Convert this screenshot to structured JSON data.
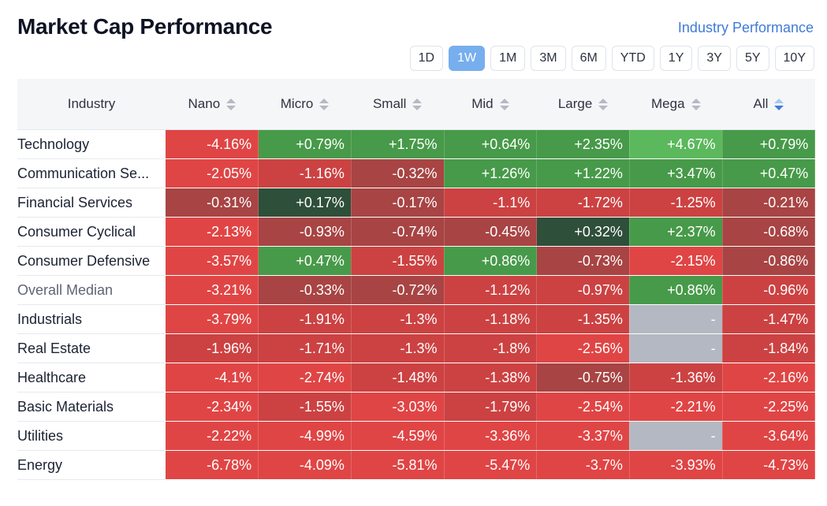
{
  "title": "Market Cap Performance",
  "industry_link": "Industry Performance",
  "ranges": [
    {
      "label": "1D",
      "active": false
    },
    {
      "label": "1W",
      "active": true
    },
    {
      "label": "1M",
      "active": false
    },
    {
      "label": "3M",
      "active": false
    },
    {
      "label": "6M",
      "active": false
    },
    {
      "label": "YTD",
      "active": false
    },
    {
      "label": "1Y",
      "active": false
    },
    {
      "label": "3Y",
      "active": false
    },
    {
      "label": "5Y",
      "active": false
    },
    {
      "label": "10Y",
      "active": false
    }
  ],
  "columns": [
    "Industry",
    "Nano",
    "Micro",
    "Small",
    "Mid",
    "Large",
    "Mega",
    "All"
  ],
  "sorted_column": "All",
  "colors": {
    "red_strong": "#e04545",
    "red_mid": "#cc4242",
    "red_dark": "#a84444",
    "green_bright": "#5cb85c",
    "green_mid": "#479a49",
    "green_dark": "#2f6e3e",
    "green_darkest": "#2e4f3a",
    "empty": "#b4b8c2"
  },
  "rows": [
    {
      "name": "Technology",
      "values": [
        "-4.16%",
        "+0.79%",
        "+1.75%",
        "+0.64%",
        "+2.35%",
        "+4.67%",
        "+0.79%"
      ],
      "shade": [
        "red_strong",
        "green_mid",
        "green_mid",
        "green_mid",
        "green_mid",
        "green_bright",
        "green_mid"
      ]
    },
    {
      "name": "Communication Se...",
      "values": [
        "-2.05%",
        "-1.16%",
        "-0.32%",
        "+1.26%",
        "+1.22%",
        "+3.47%",
        "+0.47%"
      ],
      "shade": [
        "red_strong",
        "red_mid",
        "red_dark",
        "green_mid",
        "green_mid",
        "green_mid",
        "green_mid"
      ]
    },
    {
      "name": "Financial Services",
      "values": [
        "-0.31%",
        "+0.17%",
        "-0.17%",
        "-1.1%",
        "-1.72%",
        "-1.25%",
        "-0.21%"
      ],
      "shade": [
        "red_dark",
        "green_darkest",
        "red_dark",
        "red_mid",
        "red_mid",
        "red_mid",
        "red_dark"
      ]
    },
    {
      "name": "Consumer Cyclical",
      "values": [
        "-2.13%",
        "-0.93%",
        "-0.74%",
        "-0.45%",
        "+0.32%",
        "+2.37%",
        "-0.68%"
      ],
      "shade": [
        "red_strong",
        "red_dark",
        "red_dark",
        "red_dark",
        "green_darkest",
        "green_mid",
        "red_dark"
      ]
    },
    {
      "name": "Consumer Defensive",
      "values": [
        "-3.57%",
        "+0.47%",
        "-1.55%",
        "+0.86%",
        "-0.73%",
        "-2.15%",
        "-0.86%"
      ],
      "shade": [
        "red_strong",
        "green_mid",
        "red_mid",
        "green_mid",
        "red_dark",
        "red_strong",
        "red_dark"
      ]
    },
    {
      "name": "Overall Median",
      "median": true,
      "values": [
        "-3.21%",
        "-0.33%",
        "-0.72%",
        "-1.12%",
        "-0.97%",
        "+0.86%",
        "-0.96%"
      ],
      "shade": [
        "red_strong",
        "red_dark",
        "red_dark",
        "red_mid",
        "red_mid",
        "green_mid",
        "red_mid"
      ]
    },
    {
      "name": "Industrials",
      "values": [
        "-3.79%",
        "-1.91%",
        "-1.3%",
        "-1.18%",
        "-1.35%",
        "-",
        "-1.47%"
      ],
      "shade": [
        "red_strong",
        "red_mid",
        "red_mid",
        "red_mid",
        "red_mid",
        "empty",
        "red_mid"
      ]
    },
    {
      "name": "Real Estate",
      "values": [
        "-1.96%",
        "-1.71%",
        "-1.3%",
        "-1.8%",
        "-2.56%",
        "-",
        "-1.84%"
      ],
      "shade": [
        "red_mid",
        "red_mid",
        "red_mid",
        "red_mid",
        "red_strong",
        "empty",
        "red_mid"
      ]
    },
    {
      "name": "Healthcare",
      "values": [
        "-4.1%",
        "-2.74%",
        "-1.48%",
        "-1.38%",
        "-0.75%",
        "-1.36%",
        "-2.16%"
      ],
      "shade": [
        "red_strong",
        "red_strong",
        "red_mid",
        "red_mid",
        "red_dark",
        "red_mid",
        "red_strong"
      ]
    },
    {
      "name": "Basic Materials",
      "values": [
        "-2.34%",
        "-1.55%",
        "-3.03%",
        "-1.79%",
        "-2.54%",
        "-2.21%",
        "-2.25%"
      ],
      "shade": [
        "red_strong",
        "red_mid",
        "red_strong",
        "red_mid",
        "red_strong",
        "red_strong",
        "red_strong"
      ]
    },
    {
      "name": "Utilities",
      "values": [
        "-2.22%",
        "-4.99%",
        "-4.59%",
        "-3.36%",
        "-3.37%",
        "-",
        "-3.64%"
      ],
      "shade": [
        "red_strong",
        "red_strong",
        "red_strong",
        "red_strong",
        "red_strong",
        "empty",
        "red_strong"
      ]
    },
    {
      "name": "Energy",
      "values": [
        "-6.78%",
        "-4.09%",
        "-5.81%",
        "-5.47%",
        "-3.7%",
        "-3.93%",
        "-4.73%"
      ],
      "shade": [
        "red_strong",
        "red_strong",
        "red_strong",
        "red_strong",
        "red_strong",
        "red_strong",
        "red_strong"
      ]
    }
  ]
}
